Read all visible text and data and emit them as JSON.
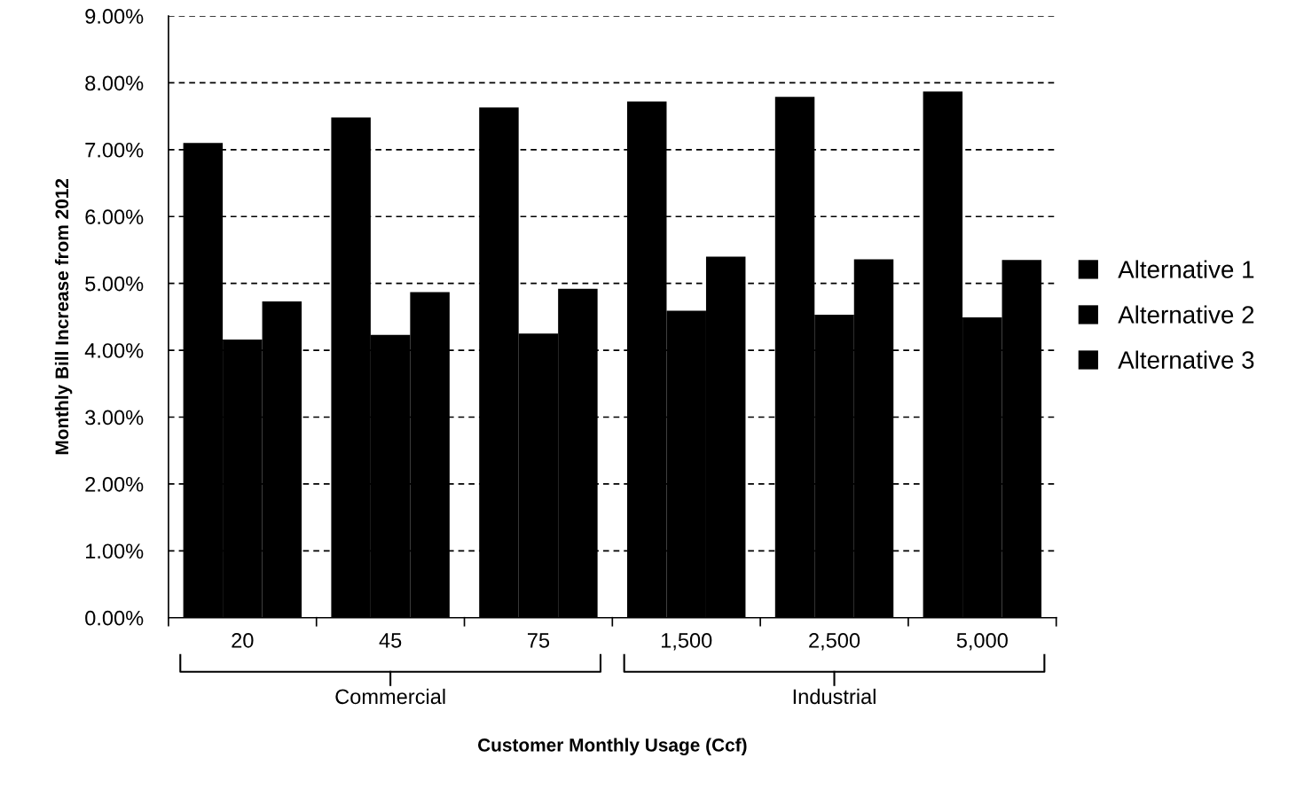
{
  "chart_data": {
    "type": "bar",
    "xlabel": "Customer Monthly Usage (Ccf)",
    "ylabel": "Monthly Bill Increase from 2012",
    "categories": [
      "20",
      "45",
      "75",
      "1,500",
      "2,500",
      "5,000"
    ],
    "series": [
      {
        "name": "Alternative 1",
        "color": "#000000",
        "values": [
          7.1,
          7.48,
          7.63,
          7.72,
          7.79,
          7.87
        ]
      },
      {
        "name": "Alternative 2",
        "color": "#000000",
        "values": [
          4.16,
          4.23,
          4.25,
          4.59,
          4.53,
          4.49
        ]
      },
      {
        "name": "Alternative 3",
        "color": "#000000",
        "values": [
          4.73,
          4.87,
          4.92,
          5.4,
          5.36,
          5.35
        ]
      }
    ],
    "ylim": [
      0,
      9
    ],
    "yticks": [
      {
        "value": 0,
        "label": "0.00%"
      },
      {
        "value": 1,
        "label": "1.00%"
      },
      {
        "value": 2,
        "label": "2.00%"
      },
      {
        "value": 3,
        "label": "3.00%"
      },
      {
        "value": 4,
        "label": "4.00%"
      },
      {
        "value": 5,
        "label": "5.00%"
      },
      {
        "value": 6,
        "label": "6.00%"
      },
      {
        "value": 7,
        "label": "7.00%"
      },
      {
        "value": 8,
        "label": "8.00%"
      },
      {
        "value": 9,
        "label": "9.00%"
      }
    ],
    "grid": "y",
    "legend": "right",
    "annotations": [
      "Commercial",
      "Industrial"
    ]
  }
}
